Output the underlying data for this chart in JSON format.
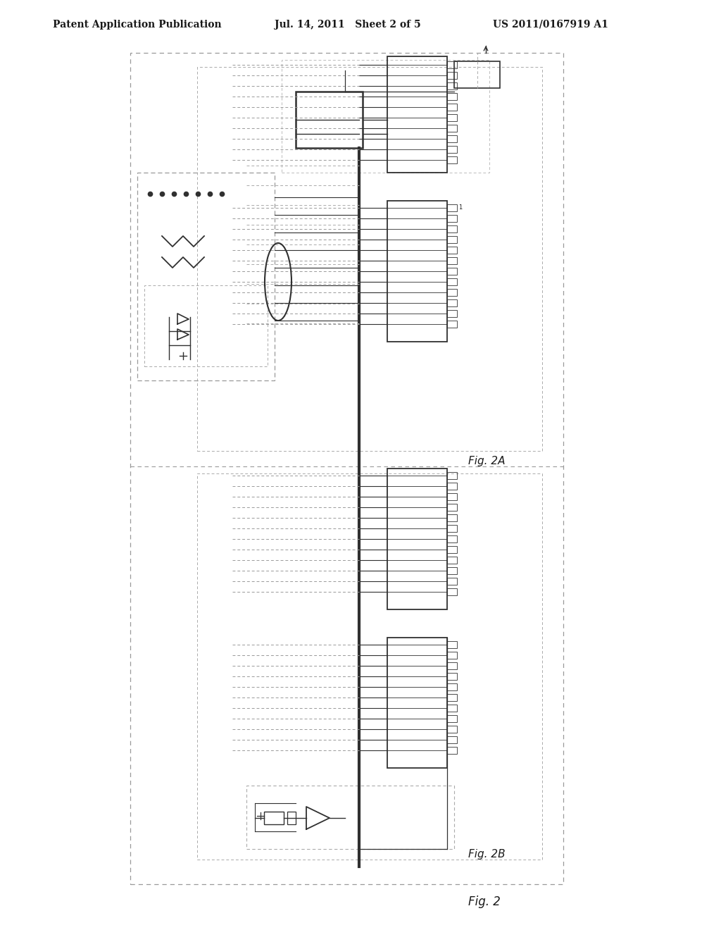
{
  "bg_color": "#ffffff",
  "header_left": "Patent Application Publication",
  "header_mid": "Jul. 14, 2011   Sheet 2 of 5",
  "header_right": "US 2011/0167919 A1",
  "fig_label_2A": "Fig. 2A",
  "fig_label_2B": "Fig. 2B",
  "fig_label_2": "Fig. 2",
  "line_color": "#303030",
  "dash_color": "#888888",
  "text_color": "#1a1a1a"
}
